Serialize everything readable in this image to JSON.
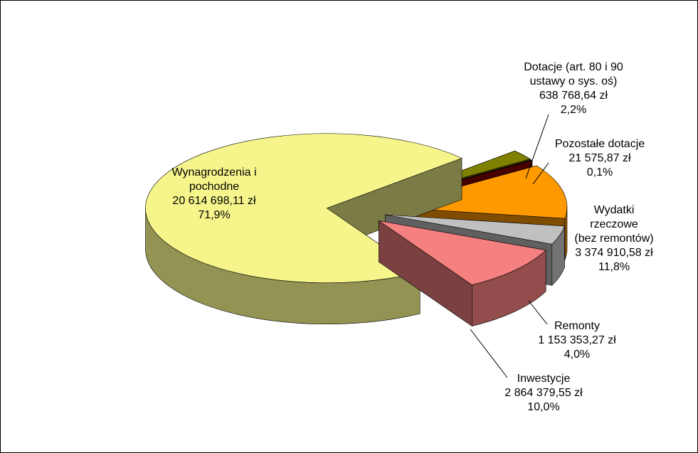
{
  "chart_data": {
    "type": "pie3d",
    "categories": [
      "Dotacje (art. 80 i 90\nustawy o sys. oś)",
      "Pozostałe dotacje",
      "Wydatki rzeczowe\n(bez remontów)",
      "Remonty",
      "Inwestycje",
      "Wynagrodzenia i\npochodne"
    ],
    "values": [
      2.2,
      0.1,
      11.8,
      4.0,
      10.0,
      71.9
    ],
    "value_labels": [
      "2,2%",
      "0,1%",
      "11,8%",
      "4,0%",
      "10,0%",
      "71,9%"
    ],
    "amount_labels": [
      "638 768,64 zł",
      "21 575,87 zł",
      "3 374 910,58 zł",
      "1 153 353,27 zł",
      "2 864 379,55 zł",
      "20 614 698,11 zł"
    ],
    "colors": [
      "#808000",
      "#8b0000",
      "#ff9900",
      "#c0c0c0",
      "#f58080",
      "#f5f58c"
    ]
  }
}
